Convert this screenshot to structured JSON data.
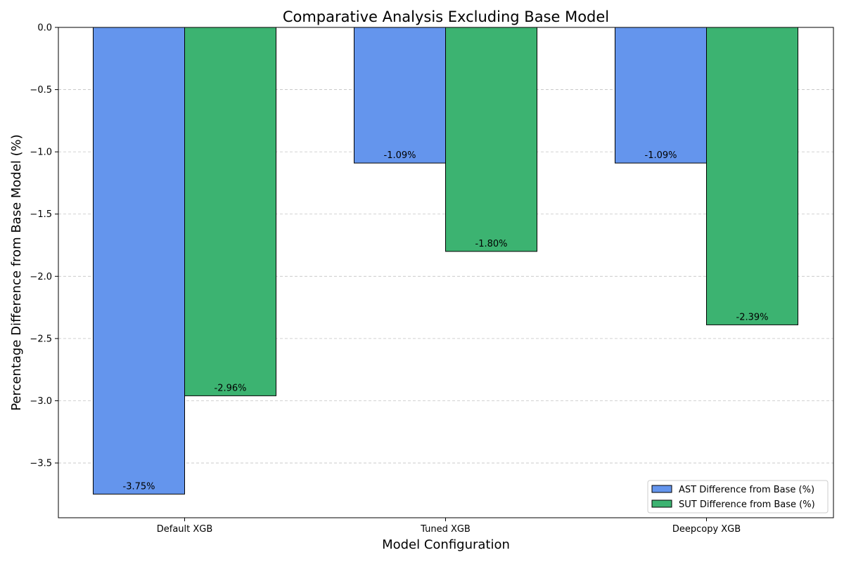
{
  "chart_data": {
    "type": "bar",
    "title": "Comparative Analysis Excluding Base Model",
    "xlabel": "Model Configuration",
    "ylabel": "Percentage Difference from Base Model (%)",
    "categories": [
      "Default XGB",
      "Tuned XGB",
      "Deepcopy XGB"
    ],
    "series": [
      {
        "name": "AST Difference from Base (%)",
        "values": [
          -3.75,
          -1.09,
          -1.09
        ],
        "labels": [
          "-3.75%",
          "-1.09%",
          "-1.09%"
        ],
        "color": "#6495ED"
      },
      {
        "name": "SUT Difference from Base (%)",
        "values": [
          -2.96,
          -1.8,
          -2.39
        ],
        "labels": [
          "-2.96%",
          "-1.80%",
          "-2.39%"
        ],
        "color": "#3CB371"
      }
    ],
    "ylim": [
      -3.94,
      0.0
    ],
    "yticks": [
      0.0,
      -0.5,
      -1.0,
      -1.5,
      -2.0,
      -2.5,
      -3.0,
      -3.5
    ],
    "ytick_labels": [
      "0.0",
      "−0.5",
      "−1.0",
      "−1.5",
      "−2.0",
      "−2.5",
      "−3.0",
      "−3.5"
    ],
    "grid": "y-dashed",
    "legend_position": "lower-right"
  }
}
